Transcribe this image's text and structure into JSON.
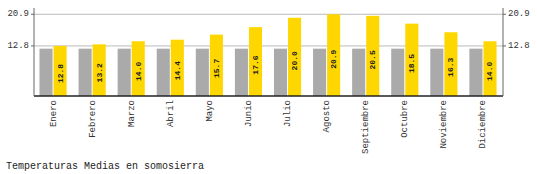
{
  "chart_data": {
    "type": "bar",
    "title": "Temperaturas Medias en somosierra",
    "categories": [
      "Enero",
      "Febrero",
      "Marzo",
      "Abril",
      "Mayo",
      "Junio",
      "Julio",
      "Agosto",
      "Septiembre",
      "Octubre",
      "Noviembre",
      "Diciembre"
    ],
    "series": [
      {
        "color": "#AAAAAA",
        "values": [
          12.1,
          12.1,
          12.1,
          12.1,
          12.1,
          12.1,
          12.1,
          12.1,
          12.1,
          12.1,
          12.1,
          12.1
        ]
      },
      {
        "color": "#FFD700",
        "values": [
          12.8,
          13.2,
          14.0,
          14.4,
          15.7,
          17.6,
          20.0,
          20.9,
          20.5,
          18.5,
          16.3,
          14.0
        ],
        "value_labels": [
          "12.8",
          "13.2",
          "14.0",
          "14.4",
          "15.7",
          "17.6",
          "20.0",
          "20.9",
          "20.5",
          "18.5",
          "16.3",
          "14.0"
        ],
        "data_labels": true
      }
    ],
    "ylim": [
      0,
      22.5
    ],
    "yticks": [
      12.8,
      20.9
    ],
    "y2lim": [
      0,
      22.5
    ],
    "y2ticks": [
      12.8,
      20.9
    ],
    "grid": true
  }
}
